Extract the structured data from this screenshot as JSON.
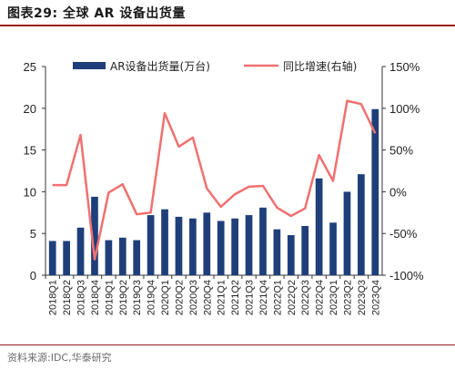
{
  "header": {
    "title": "图表29:  全球 AR 设备出货量"
  },
  "footer": {
    "source": "资料来源:IDC,华泰研究"
  },
  "colors": {
    "bar": "#1f3f7a",
    "line": "#f07070",
    "rule": "#9b1c1c"
  },
  "chart_data": {
    "type": "bar+line",
    "categories": [
      "2018Q1",
      "2018Q2",
      "2018Q3",
      "2018Q4",
      "2019Q1",
      "2019Q2",
      "2019Q3",
      "2019Q4",
      "2020Q1",
      "2020Q2",
      "2020Q3",
      "2020Q4",
      "2021Q1",
      "2021Q2",
      "2021Q3",
      "2021Q4",
      "2022Q1",
      "2022Q2",
      "2022Q3",
      "2022Q4",
      "2023Q1",
      "2023Q2",
      "2023Q3",
      "2023Q4"
    ],
    "series": [
      {
        "name": "AR设备出货量(万台)",
        "axis": "left",
        "type": "bar",
        "values": [
          4.1,
          4.1,
          5.7,
          9.4,
          4.2,
          4.5,
          4.2,
          7.2,
          7.9,
          7.0,
          6.8,
          7.5,
          6.5,
          6.8,
          7.2,
          8.1,
          5.5,
          4.8,
          5.9,
          11.6,
          6.3,
          10.0,
          12.1,
          19.9
        ]
      },
      {
        "name": "同比增速(右轴)",
        "axis": "right",
        "type": "line",
        "values": [
          8,
          8,
          68,
          -81,
          -1,
          9,
          -27,
          -25,
          94,
          54,
          65,
          4,
          -18,
          -3,
          6,
          7,
          -19,
          -29,
          -20,
          44,
          13,
          109,
          105,
          70
        ]
      }
    ],
    "y_left": {
      "min": 0,
      "max": 25,
      "ticks": [
        "0",
        "5",
        "10",
        "15",
        "20",
        "25"
      ]
    },
    "y_right": {
      "min": -100,
      "max": 150,
      "ticks": [
        "-100%",
        "-50%",
        "0%",
        "50%",
        "100%",
        "150%"
      ]
    },
    "grid": false,
    "legend": "top"
  }
}
